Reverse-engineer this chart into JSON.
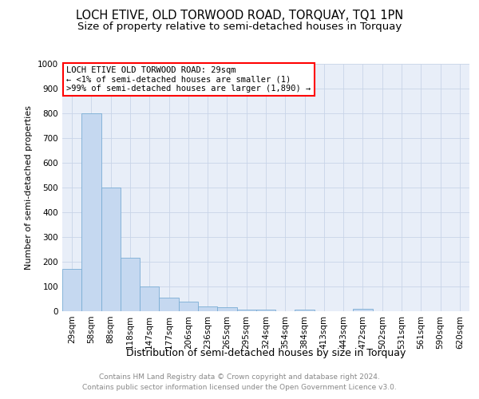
{
  "title": "LOCH ETIVE, OLD TORWOOD ROAD, TORQUAY, TQ1 1PN",
  "subtitle": "Size of property relative to semi-detached houses in Torquay",
  "xlabel": "Distribution of semi-detached houses by size in Torquay",
  "ylabel": "Number of semi-detached properties",
  "categories": [
    "29sqm",
    "58sqm",
    "88sqm",
    "118sqm",
    "147sqm",
    "177sqm",
    "206sqm",
    "236sqm",
    "265sqm",
    "295sqm",
    "324sqm",
    "354sqm",
    "384sqm",
    "413sqm",
    "443sqm",
    "472sqm",
    "502sqm",
    "531sqm",
    "561sqm",
    "590sqm",
    "620sqm"
  ],
  "values": [
    170,
    800,
    500,
    215,
    100,
    55,
    40,
    20,
    15,
    8,
    5,
    0,
    8,
    0,
    0,
    10,
    0,
    0,
    0,
    0,
    0
  ],
  "bar_color": "#c5d8f0",
  "bar_edge_color": "#7aadd4",
  "ylim": [
    0,
    1000
  ],
  "yticks": [
    0,
    100,
    200,
    300,
    400,
    500,
    600,
    700,
    800,
    900,
    1000
  ],
  "grid_color": "#c8d4e8",
  "background_color": "#e8eef8",
  "legend_text_line1": "LOCH ETIVE OLD TORWOOD ROAD: 29sqm",
  "legend_text_line2": "← <1% of semi-detached houses are smaller (1)",
  "legend_text_line3": ">99% of semi-detached houses are larger (1,890) →",
  "footer_line1": "Contains HM Land Registry data © Crown copyright and database right 2024.",
  "footer_line2": "Contains public sector information licensed under the Open Government Licence v3.0.",
  "title_fontsize": 10.5,
  "subtitle_fontsize": 9.5,
  "xlabel_fontsize": 9,
  "ylabel_fontsize": 8,
  "tick_fontsize": 7.5,
  "legend_fontsize": 7.5,
  "footer_fontsize": 6.5
}
